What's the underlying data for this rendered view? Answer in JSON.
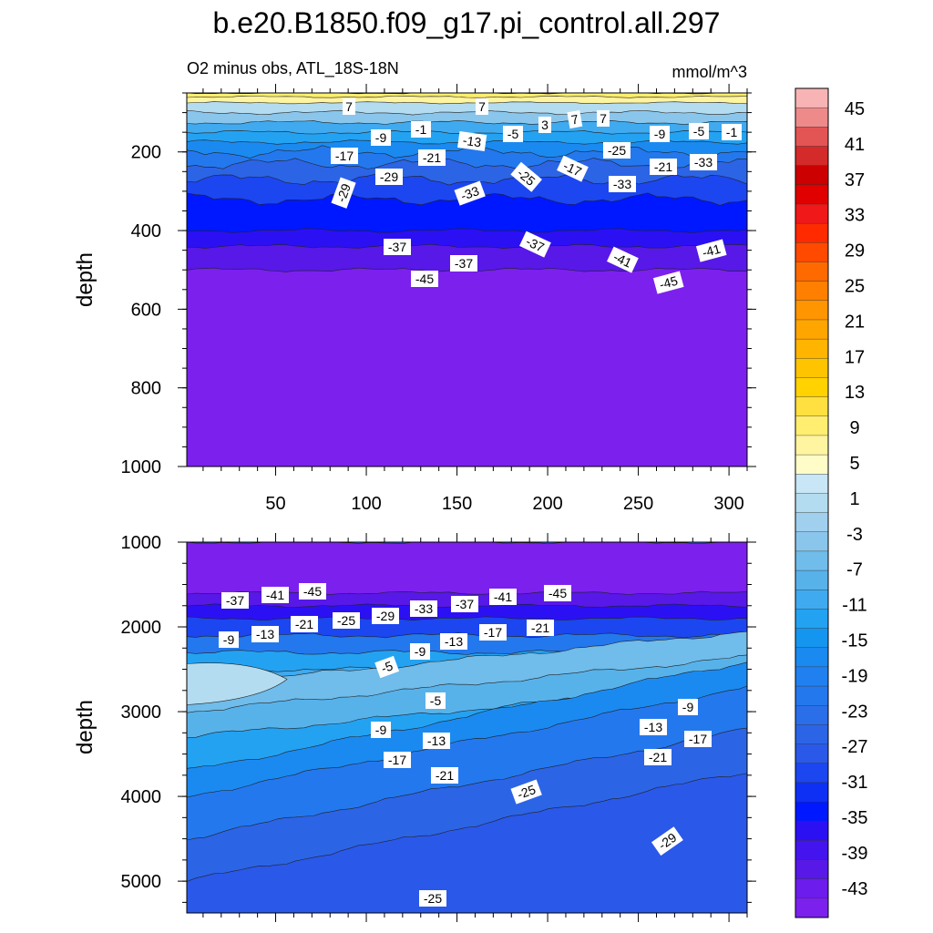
{
  "title": "b.e20.B1850.f09_g17.pi_control.all.297",
  "subtitle_left": "O2 minus obs, ATL_18S-18N",
  "subtitle_right": "mmol/m^3",
  "chart_data": [
    {
      "type": "heatmap",
      "panel": "upper",
      "ylabel": "depth",
      "x_ticks": [
        50,
        100,
        150,
        200,
        250,
        300
      ],
      "y_ticks": [
        200,
        400,
        600,
        800,
        1000
      ],
      "xlim": [
        1,
        310
      ],
      "ylim": [
        1000,
        50
      ],
      "bands": [
        {
          "depth": 50,
          "value": 9
        },
        {
          "depth": 60,
          "value": 7
        },
        {
          "depth": 75,
          "value": 1
        },
        {
          "depth": 100,
          "value": -3
        },
        {
          "depth": 125,
          "value": -9
        },
        {
          "depth": 150,
          "value": -13
        },
        {
          "depth": 175,
          "value": -17
        },
        {
          "depth": 200,
          "value": -21
        },
        {
          "depth": 230,
          "value": -25
        },
        {
          "depth": 270,
          "value": -29
        },
        {
          "depth": 320,
          "value": -33
        },
        {
          "depth": 400,
          "value": -37
        },
        {
          "depth": 440,
          "value": -41
        },
        {
          "depth": 500,
          "value": -45
        },
        {
          "depth": 1000,
          "value": -45
        }
      ],
      "contour_labels": [
        "7",
        "7",
        "-1",
        "-9",
        "-13",
        "-5",
        "3",
        "7",
        "7",
        "-9",
        "-5",
        "-1",
        "-17",
        "-21",
        "-29",
        "-25",
        "-17",
        "-25",
        "-21",
        "-33",
        "-29",
        "-33",
        "-33",
        "-37",
        "-37",
        "-41",
        "-37",
        "-45",
        "-41",
        "-45"
      ]
    },
    {
      "type": "heatmap",
      "panel": "lower",
      "ylabel": "depth",
      "y_ticks": [
        1000,
        2000,
        3000,
        4000,
        5000
      ],
      "ylim": [
        5375,
        1000
      ],
      "bands": [
        {
          "depth": 1000,
          "value": -45
        },
        {
          "depth": 1600,
          "value": -41
        },
        {
          "depth": 1750,
          "value": -37
        },
        {
          "depth": 1900,
          "value": -29
        },
        {
          "depth": 2100,
          "value": -21
        },
        {
          "depth": 2300,
          "value": -13
        },
        {
          "depth": 2500,
          "value": -9
        },
        {
          "depth": 2700,
          "value": -5
        },
        {
          "depth": 3000,
          "value": -7
        },
        {
          "depth": 3300,
          "value": -13
        },
        {
          "depth": 3700,
          "value": -17
        },
        {
          "depth": 4000,
          "value": -21
        },
        {
          "depth": 4500,
          "value": -25
        },
        {
          "depth": 5000,
          "value": -27
        },
        {
          "depth": 5375,
          "value": -29
        }
      ],
      "warm_patch_value": 1,
      "contour_labels": [
        "-37",
        "-41",
        "-45",
        "-9",
        "-13",
        "-21",
        "-25",
        "-29",
        "-33",
        "-37",
        "-41",
        "-45",
        "-21",
        "-17",
        "-13",
        "-9",
        "-5",
        "-5",
        "-9",
        "-13",
        "-17",
        "-21",
        "-9",
        "-13",
        "-21",
        "-17",
        "-25",
        "-29",
        "-25"
      ]
    }
  ],
  "colorbar": {
    "labels": [
      "45",
      "41",
      "37",
      "33",
      "29",
      "25",
      "21",
      "17",
      "13",
      "9",
      "5",
      "1",
      "-3",
      "-7",
      "-11",
      "-15",
      "-19",
      "-23",
      "-27",
      "-31",
      "-35",
      "-39",
      "-43"
    ],
    "colors": [
      "#f8b4b4",
      "#ef8a8a",
      "#e35454",
      "#d42a2a",
      "#cc0000",
      "#e00000",
      "#f01818",
      "#ff2a00",
      "#ff4a00",
      "#ff6a00",
      "#ff8000",
      "#ff9500",
      "#ffa500",
      "#ffb400",
      "#ffc400",
      "#ffd200",
      "#ffe040",
      "#ffee70",
      "#fff4a0",
      "#fffcc8",
      "#c8e6f5",
      "#b4dcf0",
      "#a0d0ee",
      "#8ac6ec",
      "#70bcea",
      "#58b2ea",
      "#40aaf0",
      "#24a2f2",
      "#1496f0",
      "#1a8af0",
      "#2080f0",
      "#2478ee",
      "#2a6eea",
      "#2c64e6",
      "#2a58e8",
      "#1c46f0",
      "#0e30f5",
      "#0018ff",
      "#2c10f4",
      "#4414ee",
      "#5818e8",
      "#6c1cec",
      "#7c20ee"
    ]
  }
}
